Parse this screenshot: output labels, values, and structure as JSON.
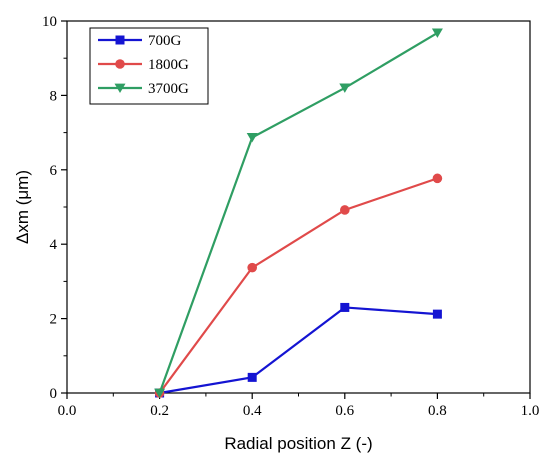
{
  "chart_data": {
    "type": "line",
    "xlabel": "Radial position Z (-)",
    "ylabel": "Δxm (μm)",
    "xlim": [
      0.0,
      1.0
    ],
    "ylim": [
      0,
      10
    ],
    "xticks": [
      "0.0",
      "0.2",
      "0.4",
      "0.6",
      "0.8",
      "1.0"
    ],
    "yticks": [
      "0",
      "2",
      "4",
      "6",
      "8",
      "10"
    ],
    "x": [
      0.2,
      0.4,
      0.6,
      0.8
    ],
    "grid": false,
    "legend_position": "top-left",
    "series": [
      {
        "name": "700G",
        "color": "#1414d2",
        "marker": "square",
        "values": [
          0.0,
          0.42,
          2.3,
          2.12
        ]
      },
      {
        "name": "1800G",
        "color": "#e04a4a",
        "marker": "circle",
        "values": [
          0.0,
          3.37,
          4.92,
          5.77
        ]
      },
      {
        "name": "3700G",
        "color": "#2f9e63",
        "marker": "triangle-down",
        "values": [
          0.0,
          6.87,
          8.2,
          9.68
        ]
      }
    ]
  }
}
